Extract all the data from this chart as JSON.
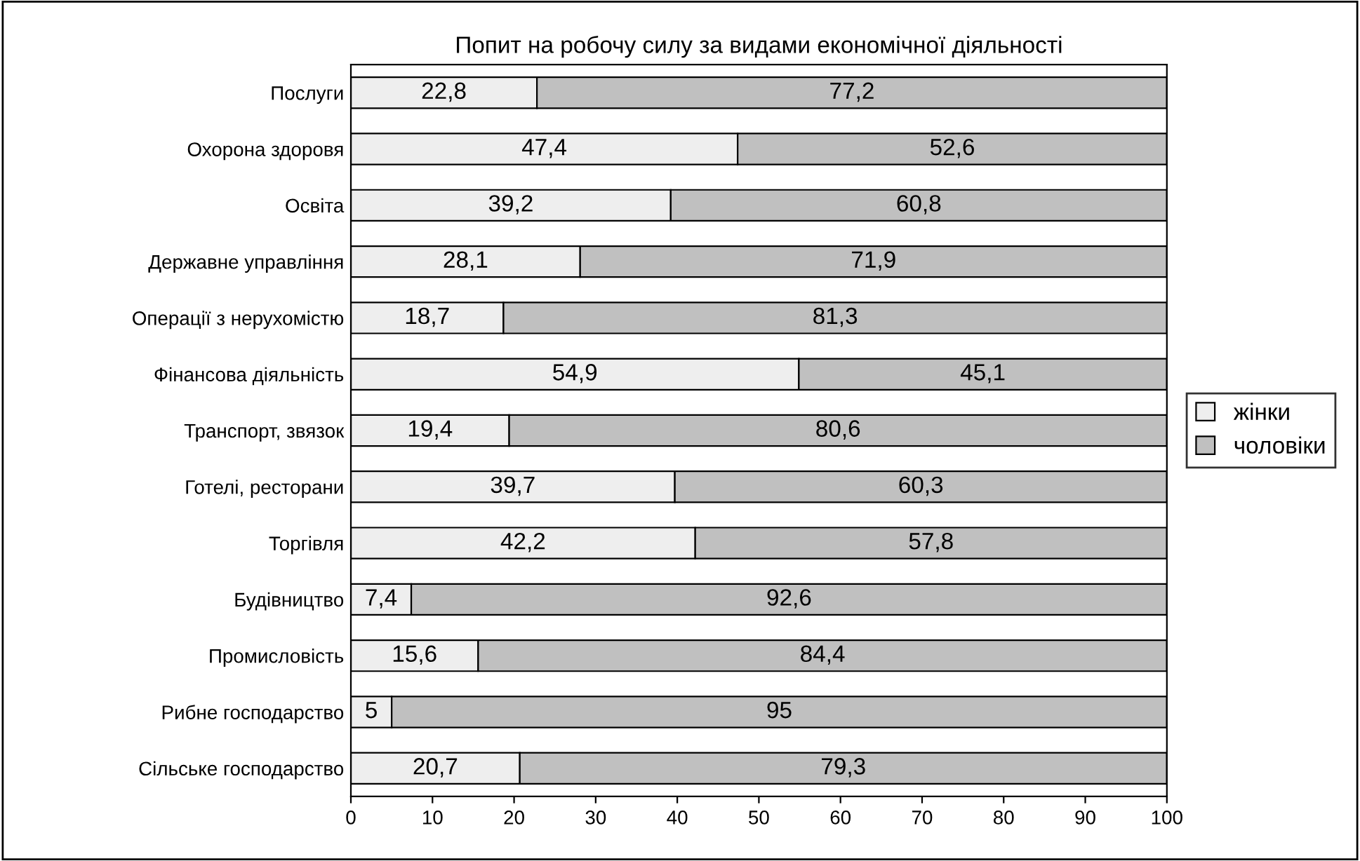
{
  "chart_data": {
    "type": "bar",
    "orientation": "horizontal",
    "stacked": true,
    "title": "Попит на робочу силу за видами економічної діяльності",
    "categories": [
      "Послуги",
      "Охорона здоровя",
      "Освіта",
      "Державне управління",
      "Операції з нерухомістю",
      "Фінансова діяльність",
      "Транспорт, звязок",
      "Готелі, ресторани",
      "Торгівля",
      "Будівництво",
      "Промисловість",
      "Рибне господарство",
      "Сільське господарство"
    ],
    "series": [
      {
        "name": "жінки",
        "color": "#eeeeee",
        "values": [
          22.8,
          47.4,
          39.2,
          28.1,
          18.7,
          54.9,
          19.4,
          39.7,
          42.2,
          7.4,
          15.6,
          5,
          20.7
        ],
        "value_labels": [
          "22,8",
          "47,4",
          "39,2",
          "28,1",
          "18,7",
          "54,9",
          "19,4",
          "39,7",
          "42,2",
          "7,4",
          "15,6",
          "5",
          "20,7"
        ]
      },
      {
        "name": "чоловіки",
        "color": "#c0c0c0",
        "values": [
          77.2,
          52.6,
          60.8,
          71.9,
          81.3,
          45.1,
          80.6,
          60.3,
          57.8,
          92.6,
          84.4,
          95,
          79.3
        ],
        "value_labels": [
          "77,2",
          "52,6",
          "60,8",
          "71,9",
          "81,3",
          "45,1",
          "80,6",
          "60,3",
          "57,8",
          "92,6",
          "84,4",
          "95",
          "79,3"
        ]
      }
    ],
    "xlim": [
      0,
      100
    ],
    "xticks": [
      0,
      10,
      20,
      30,
      40,
      50,
      60,
      70,
      80,
      90,
      100
    ],
    "grid": false,
    "legend": "right"
  }
}
